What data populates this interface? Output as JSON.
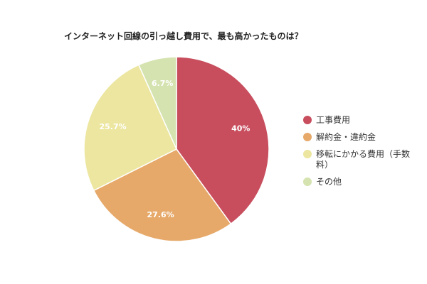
{
  "chart_data": {
    "type": "pie",
    "title": "インターネット回線の引っ越し費用で、最も高かったものは？",
    "slices": [
      {
        "label": "工事費用",
        "legend_lines": [
          "工事費用"
        ],
        "value": 40,
        "display": "40%",
        "color": "#c84e5e"
      },
      {
        "label": "解約金・違約金",
        "legend_lines": [
          "解約金・違約金"
        ],
        "value": 27.6,
        "display": "27.6%",
        "color": "#e6a96a"
      },
      {
        "label": "移転にかかる費用（手数料）",
        "legend_lines": [
          "移転にかかる費用（手数",
          "料）"
        ],
        "value": 25.7,
        "display": "25.7%",
        "color": "#ece6a0"
      },
      {
        "label": "その他",
        "legend_lines": [
          "その他"
        ],
        "value": 6.7,
        "display": "6.7%",
        "color": "#d5e3b0"
      }
    ],
    "start_angle_deg": 0,
    "direction": "clockwise",
    "legend_position": "right"
  }
}
